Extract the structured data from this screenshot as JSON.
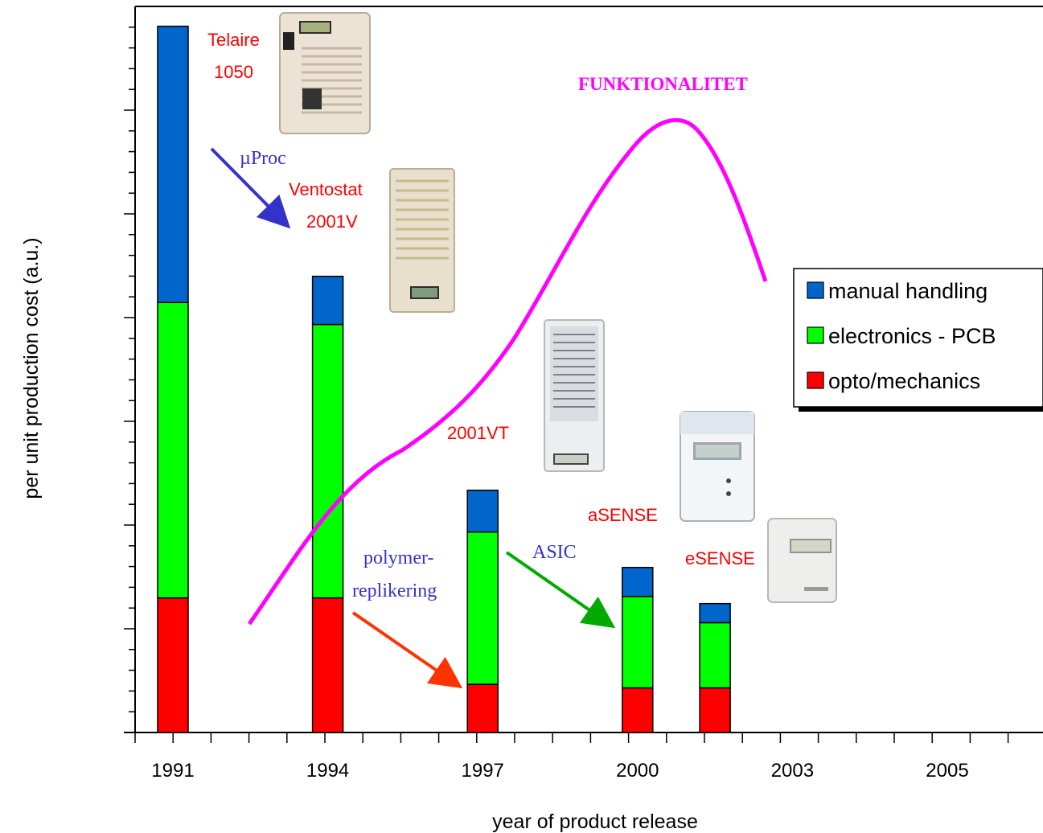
{
  "chart_data": {
    "type": "bar",
    "stacked": true,
    "xlabel": "year of product release",
    "ylabel": "per unit production cost (a.u.)",
    "x_tick_labels": [
      "1991",
      "1994",
      "1997",
      "2000",
      "2003",
      "2005"
    ],
    "ylim": [
      0,
      100
    ],
    "categories": [
      "1991",
      "1994",
      "1997",
      "2000",
      "2001.5"
    ],
    "series": [
      {
        "name": "opto/mechanics",
        "color": "#ff0000",
        "values": [
          19,
          19,
          6.8,
          6.3,
          6.3
        ]
      },
      {
        "name": "electronics - PCB",
        "color": "#00ff00",
        "values": [
          41.7,
          38.6,
          21.5,
          12.9,
          9.2
        ]
      },
      {
        "name": "manual handling",
        "color": "#0066cc",
        "values": [
          39,
          6.8,
          5.9,
          4.1,
          2.7
        ]
      }
    ],
    "legend_position": "right",
    "curve": {
      "label": "FUNKTIONALITET",
      "color": "#ff00ff"
    },
    "product_labels": [
      {
        "text": "Telaire",
        "color": "#ff0000"
      },
      {
        "text": "1050",
        "color": "#ff0000"
      },
      {
        "text": "Ventostat",
        "color": "#ff0000"
      },
      {
        "text": "2001V",
        "color": "#ff0000"
      },
      {
        "text": "2001VT",
        "color": "#ff0000"
      },
      {
        "text": "aSENSE",
        "color": "#ff0000"
      },
      {
        "text": "eSENSE",
        "color": "#ff0000"
      }
    ],
    "annotations": [
      {
        "text": "µProc",
        "color": "#3333cc",
        "arrow_color": "#3333cc"
      },
      {
        "text": "polymer-",
        "color": "#3333cc"
      },
      {
        "text": "replikering",
        "color": "#3333cc",
        "arrow_color": "#ff3300"
      },
      {
        "text": "ASIC",
        "color": "#3333cc",
        "arrow_color": "#00aa00"
      }
    ]
  }
}
